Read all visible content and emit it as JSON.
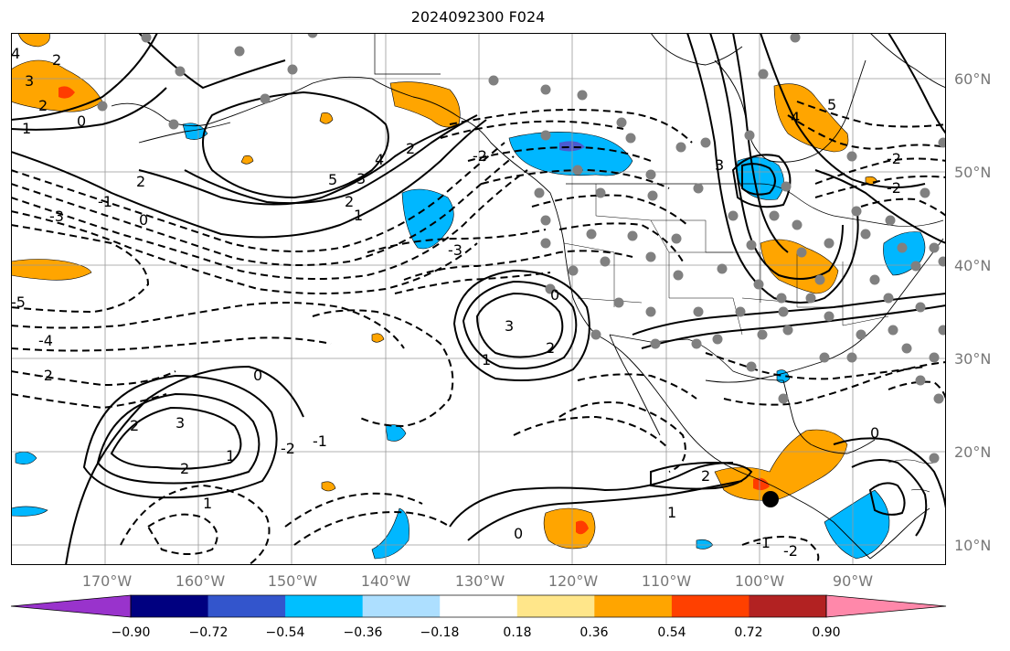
{
  "title": "2024092300 F024",
  "colors": {
    "land_lines": "#000000",
    "grid": "#999999",
    "station_dot": "#808080",
    "neg_strong": "#4b5bd1",
    "neg_mid": "#00b7ff",
    "neg_light": "#a8dfff",
    "pos_light": "#ffe57f",
    "pos_mid": "#ffa500",
    "pos_strong": "#ff3c00",
    "pos_darker": "#b22222"
  },
  "lat_labels": [
    "60°N",
    "50°N",
    "40°N",
    "30°N",
    "20°N",
    "10°N"
  ],
  "lon_labels": [
    "170°W",
    "160°W",
    "150°W",
    "140°W",
    "130°W",
    "120°W",
    "110°W",
    "100°W",
    "90°W"
  ],
  "colorbar": {
    "colors": [
      "#9933cc",
      "#000080",
      "#3355cc",
      "#00bfff",
      "#addfff",
      "#ffffff",
      "#ffe68a",
      "#ffa500",
      "#ff4000",
      "#b22222",
      "#ff88aa"
    ],
    "tick_labels": [
      "−0.90",
      "−0.72",
      "−0.54",
      "−0.36",
      "−0.18",
      "0.18",
      "0.36",
      "0.54",
      "0.72",
      "0.90"
    ]
  },
  "contour_labels": [
    "4",
    "2",
    "3",
    "2",
    "0",
    "1",
    "2",
    "5",
    "4",
    "3",
    "2",
    "1",
    "0",
    "-1",
    "-3",
    "-5",
    "-4",
    "-2",
    "-3",
    "-2",
    "2",
    "3",
    "2",
    "0",
    "0",
    "1",
    "2",
    "-1",
    "-2",
    "3",
    "1",
    "2",
    "1",
    "0",
    "2",
    "1",
    "-1",
    "-2",
    "4",
    "3",
    "5",
    "-2",
    "0",
    "-2"
  ]
}
